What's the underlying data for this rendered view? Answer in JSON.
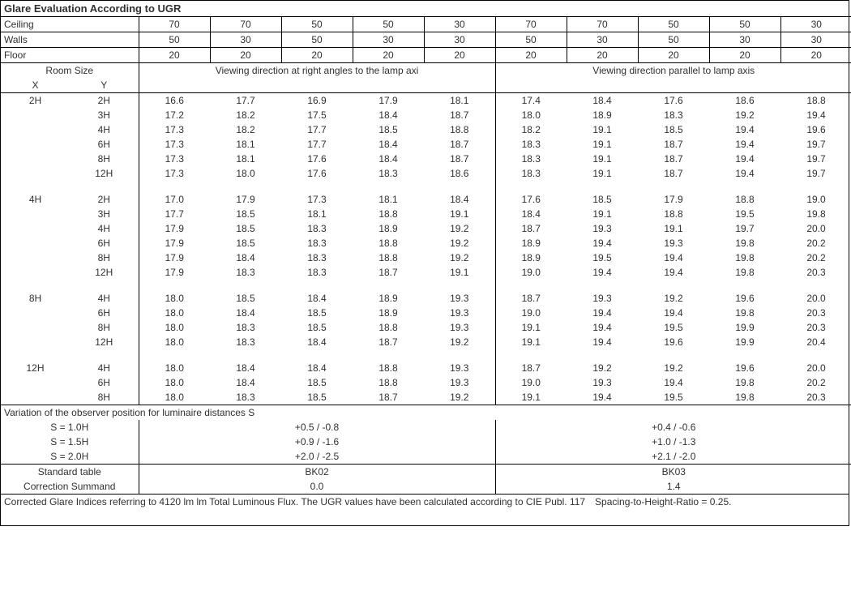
{
  "title": "Glare Evaluation According to UGR",
  "header_rows": [
    {
      "label": "Ceiling",
      "vals": [
        "70",
        "70",
        "50",
        "50",
        "30",
        "70",
        "70",
        "50",
        "50",
        "30"
      ]
    },
    {
      "label": "Walls",
      "vals": [
        "50",
        "30",
        "50",
        "30",
        "30",
        "50",
        "30",
        "50",
        "30",
        "30"
      ]
    },
    {
      "label": "Floor",
      "vals": [
        "20",
        "20",
        "20",
        "20",
        "20",
        "20",
        "20",
        "20",
        "20",
        "20"
      ]
    }
  ],
  "roomsize_label": "Room Size",
  "x_label": "X",
  "y_label": "Y",
  "dir1": "Viewing direction at right angles to the lamp axi",
  "dir2": "Viewing direction parallel to lamp axis",
  "groups": [
    {
      "x": "2H",
      "rows": [
        {
          "y": "2H",
          "v": [
            "16.6",
            "17.7",
            "16.9",
            "17.9",
            "18.1",
            "17.4",
            "18.4",
            "17.6",
            "18.6",
            "18.8"
          ]
        },
        {
          "y": "3H",
          "v": [
            "17.2",
            "18.2",
            "17.5",
            "18.4",
            "18.7",
            "18.0",
            "18.9",
            "18.3",
            "19.2",
            "19.4"
          ]
        },
        {
          "y": "4H",
          "v": [
            "17.3",
            "18.2",
            "17.7",
            "18.5",
            "18.8",
            "18.2",
            "19.1",
            "18.5",
            "19.4",
            "19.6"
          ]
        },
        {
          "y": "6H",
          "v": [
            "17.3",
            "18.1",
            "17.7",
            "18.4",
            "18.7",
            "18.3",
            "19.1",
            "18.7",
            "19.4",
            "19.7"
          ]
        },
        {
          "y": "8H",
          "v": [
            "17.3",
            "18.1",
            "17.6",
            "18.4",
            "18.7",
            "18.3",
            "19.1",
            "18.7",
            "19.4",
            "19.7"
          ]
        },
        {
          "y": "12H",
          "v": [
            "17.3",
            "18.0",
            "17.6",
            "18.3",
            "18.6",
            "18.3",
            "19.1",
            "18.7",
            "19.4",
            "19.7"
          ]
        }
      ]
    },
    {
      "x": "4H",
      "rows": [
        {
          "y": "2H",
          "v": [
            "17.0",
            "17.9",
            "17.3",
            "18.1",
            "18.4",
            "17.6",
            "18.5",
            "17.9",
            "18.8",
            "19.0"
          ]
        },
        {
          "y": "3H",
          "v": [
            "17.7",
            "18.5",
            "18.1",
            "18.8",
            "19.1",
            "18.4",
            "19.1",
            "18.8",
            "19.5",
            "19.8"
          ]
        },
        {
          "y": "4H",
          "v": [
            "17.9",
            "18.5",
            "18.3",
            "18.9",
            "19.2",
            "18.7",
            "19.3",
            "19.1",
            "19.7",
            "20.0"
          ]
        },
        {
          "y": "6H",
          "v": [
            "17.9",
            "18.5",
            "18.3",
            "18.8",
            "19.2",
            "18.9",
            "19.4",
            "19.3",
            "19.8",
            "20.2"
          ]
        },
        {
          "y": "8H",
          "v": [
            "17.9",
            "18.4",
            "18.3",
            "18.8",
            "19.2",
            "18.9",
            "19.5",
            "19.4",
            "19.8",
            "20.2"
          ]
        },
        {
          "y": "12H",
          "v": [
            "17.9",
            "18.3",
            "18.3",
            "18.7",
            "19.1",
            "19.0",
            "19.4",
            "19.4",
            "19.8",
            "20.3"
          ]
        }
      ]
    },
    {
      "x": "8H",
      "rows": [
        {
          "y": "4H",
          "v": [
            "18.0",
            "18.5",
            "18.4",
            "18.9",
            "19.3",
            "18.7",
            "19.3",
            "19.2",
            "19.6",
            "20.0"
          ]
        },
        {
          "y": "6H",
          "v": [
            "18.0",
            "18.4",
            "18.5",
            "18.9",
            "19.3",
            "19.0",
            "19.4",
            "19.4",
            "19.8",
            "20.3"
          ]
        },
        {
          "y": "8H",
          "v": [
            "18.0",
            "18.3",
            "18.5",
            "18.8",
            "19.3",
            "19.1",
            "19.4",
            "19.5",
            "19.9",
            "20.3"
          ]
        },
        {
          "y": "12H",
          "v": [
            "18.0",
            "18.3",
            "18.4",
            "18.7",
            "19.2",
            "19.1",
            "19.4",
            "19.6",
            "19.9",
            "20.4"
          ]
        }
      ]
    },
    {
      "x": "12H",
      "rows": [
        {
          "y": "4H",
          "v": [
            "18.0",
            "18.4",
            "18.4",
            "18.8",
            "19.3",
            "18.7",
            "19.2",
            "19.2",
            "19.6",
            "20.0"
          ]
        },
        {
          "y": "6H",
          "v": [
            "18.0",
            "18.4",
            "18.5",
            "18.8",
            "19.3",
            "19.0",
            "19.3",
            "19.4",
            "19.8",
            "20.2"
          ]
        },
        {
          "y": "8H",
          "v": [
            "18.0",
            "18.3",
            "18.5",
            "18.7",
            "19.2",
            "19.1",
            "19.4",
            "19.5",
            "19.8",
            "20.3"
          ]
        }
      ]
    }
  ],
  "variation_title": "Variation of the observer position for luminaire distances S",
  "variation_rows": [
    {
      "s": "S = 1.0H",
      "l": "+0.5 / -0.8",
      "r": "+0.4 / -0.6"
    },
    {
      "s": "S = 1.5H",
      "l": "+0.9 / -1.6",
      "r": "+1.0 / -1.3"
    },
    {
      "s": "S = 2.0H",
      "l": "+2.0 / -2.5",
      "r": "+2.1 / -2.0"
    }
  ],
  "std_table_label": "Standard table",
  "corr_summand_label": "Correction Summand",
  "std_left": "BK02",
  "std_right": "BK03",
  "corr_left": "0.0",
  "corr_right": "1.4",
  "footnote": "Corrected Glare Indices referring to 4120 lm lm Total Luminous Flux. The UGR values have been calculated according to CIE Publ. 117 Spacing-to-Height-Ratio = 0.25."
}
